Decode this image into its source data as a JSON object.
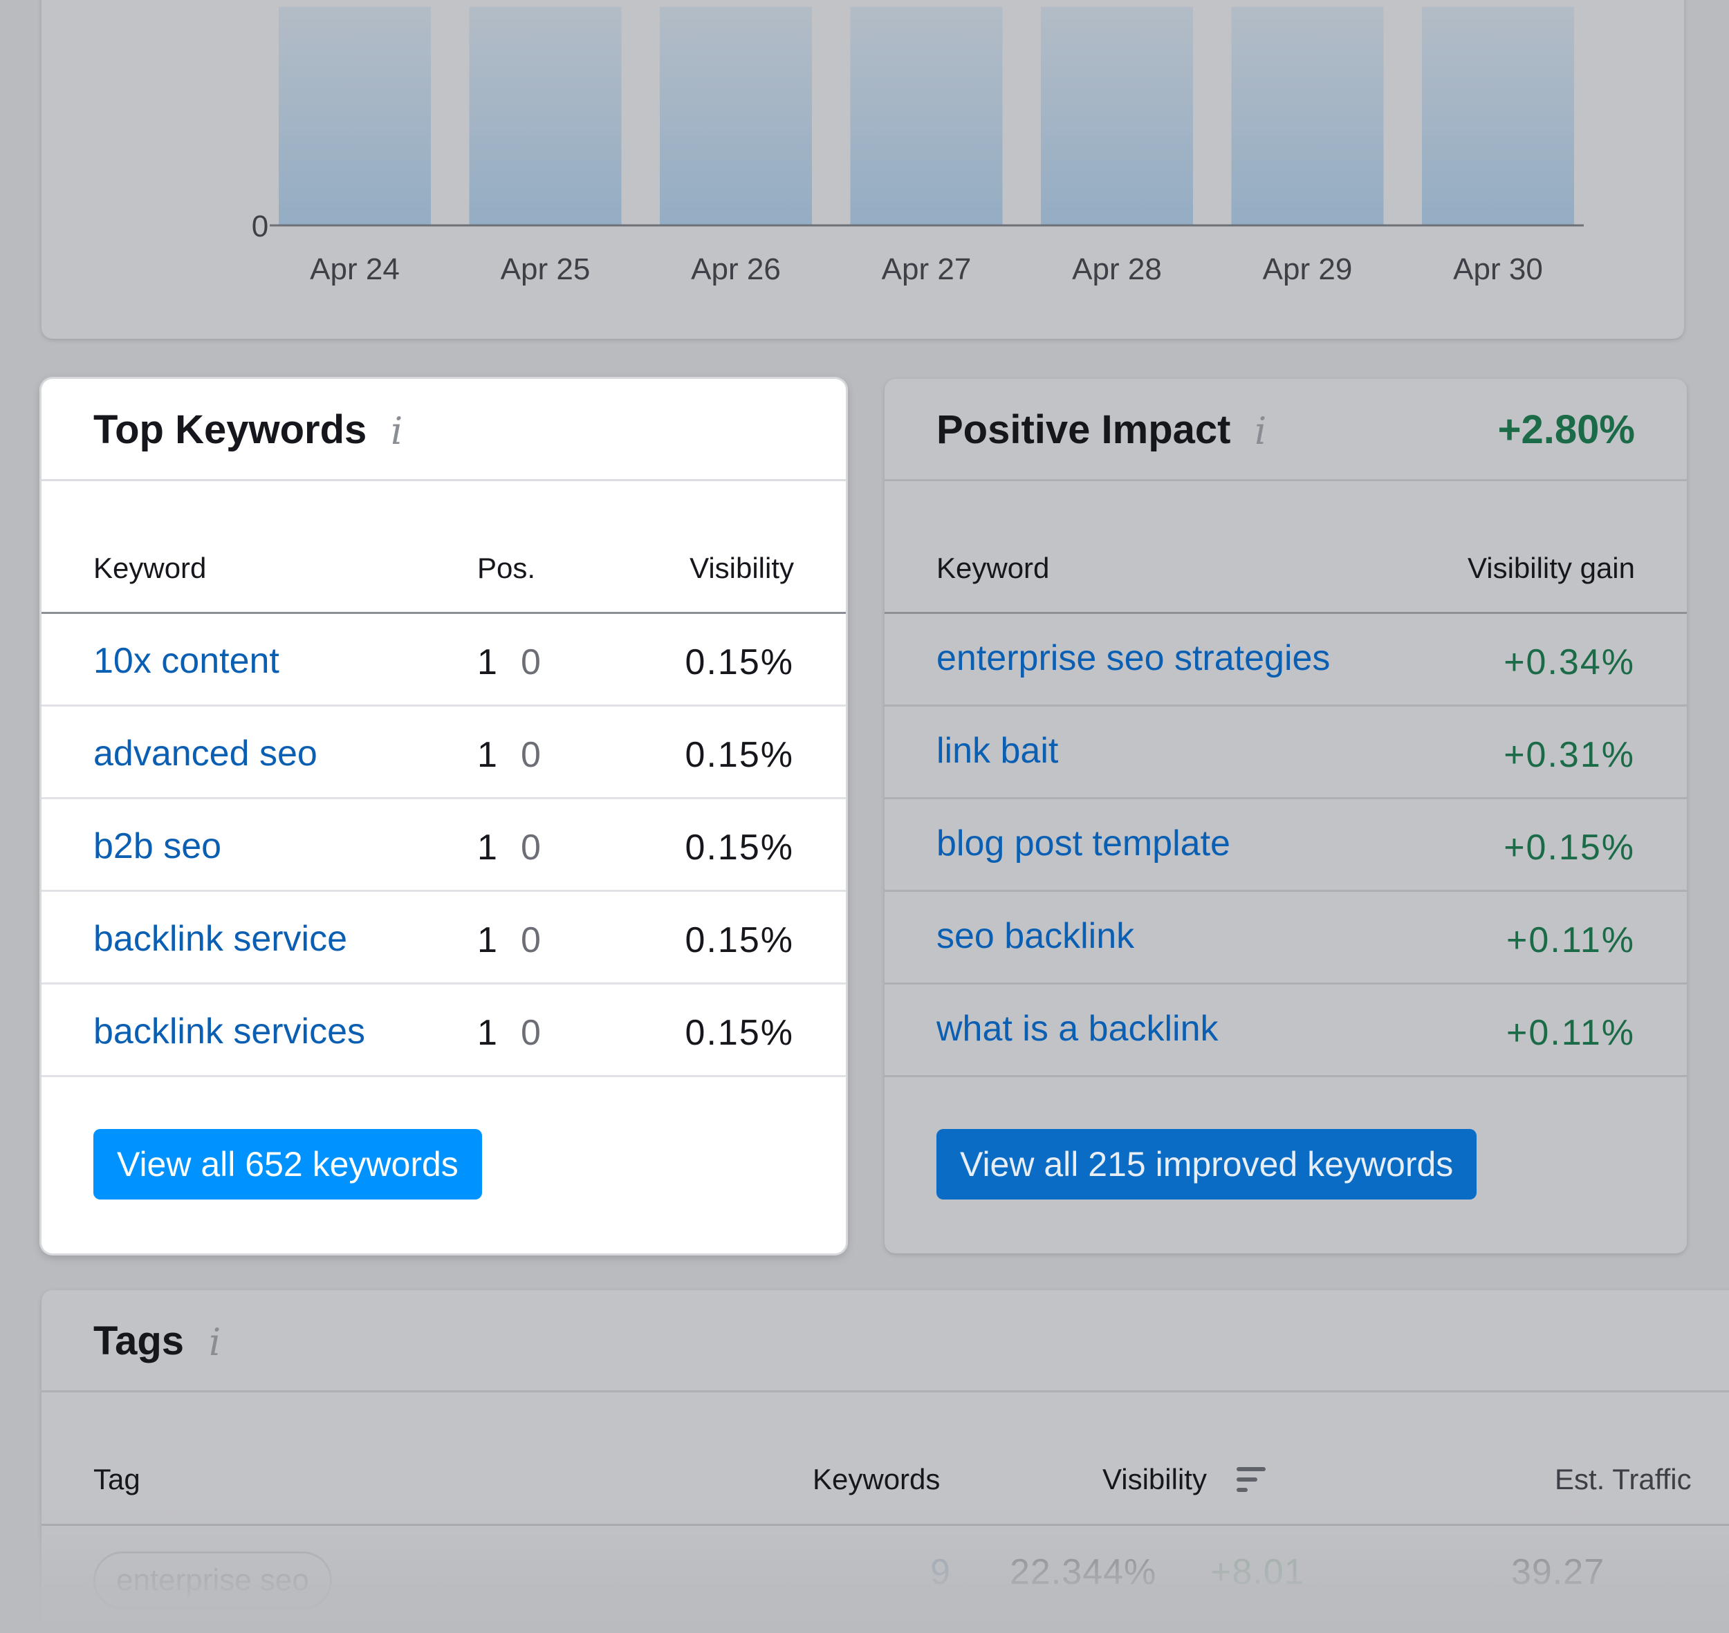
{
  "chart_data": {
    "type": "bar",
    "categories": [
      "Apr 24",
      "Apr 25",
      "Apr 26",
      "Apr 27",
      "Apr 28",
      "Apr 29",
      "Apr 30"
    ],
    "y_tick_labels": [
      "0"
    ],
    "bar_color": "#94adc4"
  },
  "top_keywords": {
    "title": "Top Keywords",
    "info_icon": "i",
    "columns": {
      "keyword": "Keyword",
      "pos": "Pos.",
      "visibility": "Visibility"
    },
    "rows": [
      {
        "keyword": "10x content",
        "pos": "1",
        "pos_change": "0",
        "visibility": "0.15%"
      },
      {
        "keyword": "advanced seo",
        "pos": "1",
        "pos_change": "0",
        "visibility": "0.15%"
      },
      {
        "keyword": "b2b seo",
        "pos": "1",
        "pos_change": "0",
        "visibility": "0.15%"
      },
      {
        "keyword": "backlink service",
        "pos": "1",
        "pos_change": "0",
        "visibility": "0.15%"
      },
      {
        "keyword": "backlink services",
        "pos": "1",
        "pos_change": "0",
        "visibility": "0.15%"
      }
    ],
    "button_label": "View all 652 keywords"
  },
  "positive_impact": {
    "title": "Positive Impact",
    "info_icon": "i",
    "total_change": "+2.80%",
    "columns": {
      "keyword": "Keyword",
      "gain": "Visibility gain"
    },
    "rows": [
      {
        "keyword": "enterprise seo strategies",
        "gain": "+0.34%"
      },
      {
        "keyword": "link bait",
        "gain": "+0.31%"
      },
      {
        "keyword": "blog post template",
        "gain": "+0.15%"
      },
      {
        "keyword": "seo backlink",
        "gain": "+0.11%"
      },
      {
        "keyword": "what is a backlink",
        "gain": "+0.11%"
      }
    ],
    "button_label": "View all 215 improved keywords"
  },
  "tags": {
    "title": "Tags",
    "info_icon": "i",
    "columns": {
      "tag": "Tag",
      "keywords": "Keywords",
      "visibility": "Visibility",
      "est_traffic": "Est. Traffic"
    },
    "rows": [
      {
        "tag": "enterprise seo",
        "keywords": "9",
        "visibility": "22.344%",
        "visibility_change": "+8.01",
        "est_traffic": "39.27"
      }
    ]
  },
  "colors": {
    "link": "#0a5fb3",
    "positive": "#1b6b48",
    "primary_button": "#0093ff",
    "secondary_button": "#0a6cc4"
  }
}
